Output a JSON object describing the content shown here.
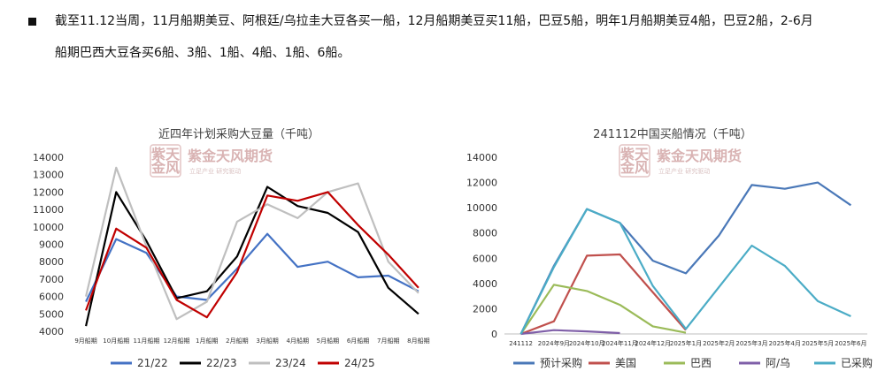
{
  "summary": {
    "line1": "截至11.12当周，11月船期美豆、阿根廷/乌拉圭大豆各买一船，12月船期美豆买11船，巴豆5船，明年1月船期美豆4船，巴豆2船，2-6月",
    "line2": "船期巴西大豆各买6船、3船、1船、4船、1船、6船。"
  },
  "watermark": {
    "main": "紫金天风期货",
    "sub": "立足产业  研究驱动",
    "seal": "紫天金风"
  },
  "colors": {
    "s2122": "#4472c4",
    "s2223": "#000000",
    "s2324": "#bfbfbf",
    "s2425": "#c00000",
    "plan": "#4a78b8",
    "usa": "#c0504d",
    "brazil": "#9bbb59",
    "arg": "#7f5fa8",
    "bought": "#4bacc6"
  },
  "chart_data": [
    {
      "type": "line",
      "title": "近四年计划采购大豆量（千吨）",
      "categories": [
        "9月船期",
        "10月船期",
        "11月船期",
        "12月船期",
        "1月船期",
        "2月船期",
        "3月船期",
        "4月船期",
        "5月船期",
        "6月船期",
        "7月船期",
        "8月船期"
      ],
      "ylim": [
        4000,
        14000
      ],
      "yticks": [
        4000,
        5000,
        6000,
        7000,
        8000,
        9000,
        10000,
        11000,
        12000,
        13000,
        14000
      ],
      "legend_position": "bottom",
      "series": [
        {
          "name": "21/22",
          "color_key": "s2122",
          "values": [
            5700,
            9300,
            8500,
            6000,
            5800,
            7600,
            9600,
            7700,
            8000,
            7100,
            7200,
            6300
          ]
        },
        {
          "name": "22/23",
          "color_key": "s2223",
          "values": [
            4300,
            12000,
            9200,
            5900,
            6300,
            8300,
            12300,
            11200,
            10800,
            9700,
            6500,
            5000
          ]
        },
        {
          "name": "23/24",
          "color_key": "s2324",
          "values": [
            6000,
            13400,
            8900,
            4700,
            5700,
            10300,
            11300,
            10500,
            12000,
            12500,
            8000,
            6200
          ]
        },
        {
          "name": "24/25",
          "color_key": "s2425",
          "values": [
            5200,
            9900,
            8800,
            5800,
            4800,
            7400,
            11800,
            11500,
            12000,
            10100,
            8400,
            6500
          ]
        }
      ]
    },
    {
      "type": "line",
      "title": "241112中国买船情况（千吨）",
      "categories": [
        "241112",
        "2024年9月",
        "2024年10月",
        "2024年11月",
        "2024年12月",
        "2025年1月",
        "2025年2月",
        "2025年3月",
        "2025年4月",
        "2025年5月",
        "2025年6月"
      ],
      "ylim": [
        0,
        14000
      ],
      "yticks": [
        0,
        2000,
        4000,
        6000,
        8000,
        10000,
        12000,
        14000
      ],
      "legend_position": "bottom",
      "series": [
        {
          "name": "预计采购",
          "color_key": "plan",
          "values": [
            0,
            5400,
            9900,
            8800,
            5800,
            4800,
            7800,
            11800,
            11500,
            12000,
            10200
          ]
        },
        {
          "name": "美国",
          "color_key": "usa",
          "values": [
            0,
            1000,
            6200,
            6300,
            3300,
            300,
            null,
            null,
            null,
            null,
            null
          ]
        },
        {
          "name": "巴西",
          "color_key": "brazil",
          "values": [
            0,
            3900,
            3400,
            2300,
            600,
            100,
            null,
            null,
            null,
            null,
            null
          ]
        },
        {
          "name": "阿/乌",
          "color_key": "arg",
          "values": [
            0,
            300,
            200,
            70,
            null,
            null,
            null,
            null,
            null,
            null,
            null
          ]
        },
        {
          "name": "已采购",
          "color_key": "bought",
          "values": [
            0,
            5300,
            9900,
            8800,
            3800,
            400,
            3700,
            7000,
            5400,
            2600,
            1400
          ]
        }
      ]
    }
  ]
}
